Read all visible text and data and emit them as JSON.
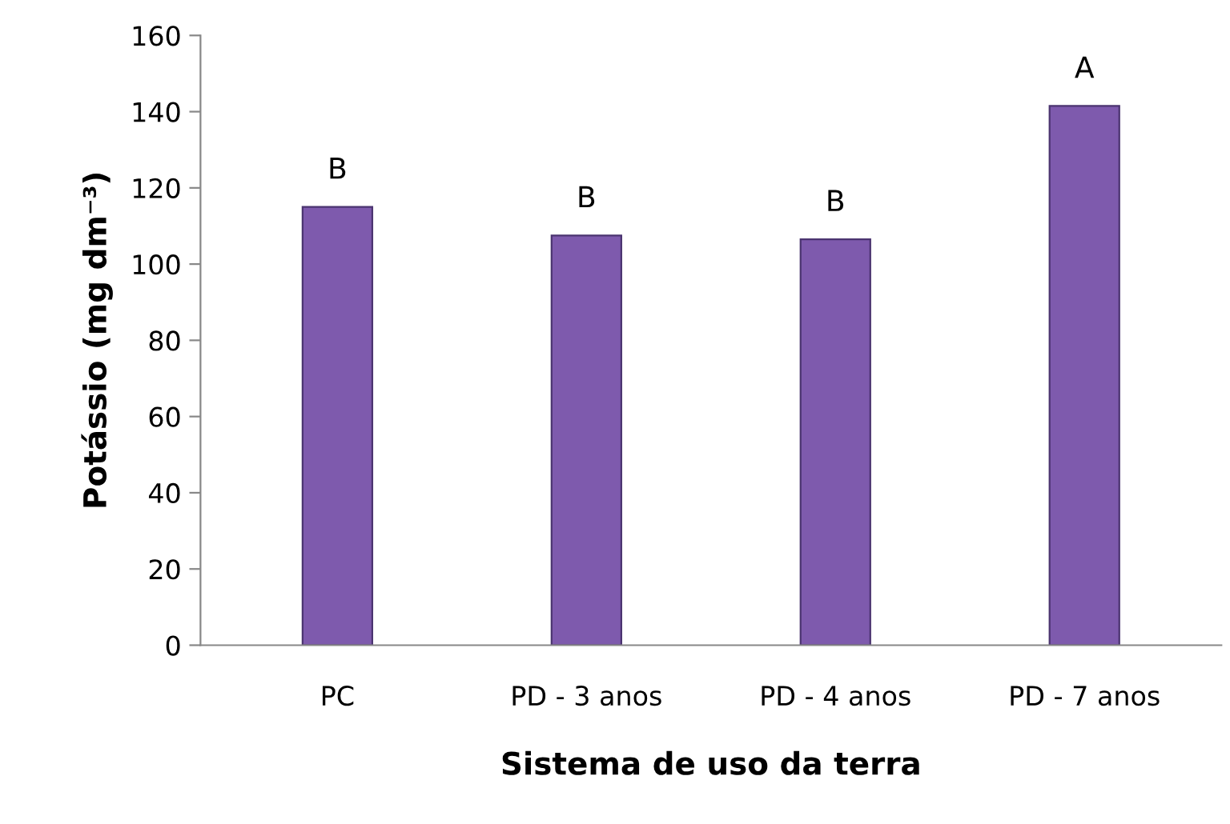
{
  "chart_data": {
    "type": "bar",
    "xlabel": "Sistema de uso da terra",
    "ylabel": "Potássio (mg dm⁻³)",
    "categories": [
      "PC",
      "PD - 3 anos",
      "PD - 4 anos",
      "PD - 7 anos"
    ],
    "values": [
      115,
      107.5,
      106.5,
      141.5
    ],
    "color": "#7e5aad",
    "ylim": [
      0,
      160
    ],
    "yticks": [
      0,
      20,
      40,
      60,
      80,
      100,
      120,
      140,
      160
    ],
    "grid": false,
    "legend": false,
    "annotations": [
      {
        "text": "B",
        "x": "PC",
        "y": 115
      },
      {
        "text": "B",
        "x": "PD - 3 anos",
        "y": 107.5
      },
      {
        "text": "B",
        "x": "PD - 4 anos",
        "y": 106.5
      },
      {
        "text": "A",
        "x": "PD - 7 anos",
        "y": 141.5
      }
    ]
  }
}
